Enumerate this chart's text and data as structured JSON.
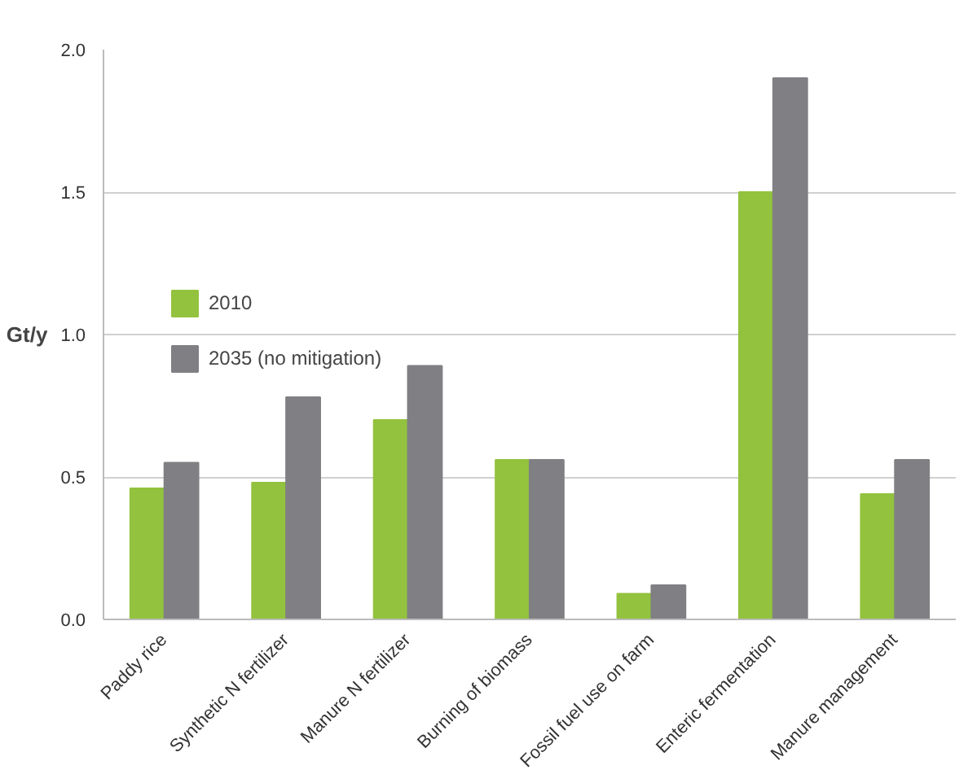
{
  "chart_data": {
    "type": "bar",
    "ylabel": "Gt/y",
    "categories": [
      "Paddy rice",
      "Synthetic N fertilizer",
      "Manure N fertilizer",
      "Burning of biomass",
      "Fossil fuel use on farm",
      "Enteric fermentation",
      "Manure management"
    ],
    "series": [
      {
        "name": "2010",
        "color": "#93c23e",
        "values": [
          0.46,
          0.48,
          0.7,
          0.56,
          0.09,
          1.5,
          0.44
        ]
      },
      {
        "name": "2035 (no mitigation)",
        "color": "#808084",
        "values": [
          0.55,
          0.78,
          0.89,
          0.56,
          0.12,
          1.9,
          0.56
        ]
      }
    ],
    "ylim": [
      0,
      2.0
    ],
    "yticks": [
      {
        "value": 0,
        "label": "0.0"
      },
      {
        "value": 0.5,
        "label": "0.5"
      },
      {
        "value": 1.0,
        "label": "1.0"
      },
      {
        "value": 1.5,
        "label": "1.5"
      },
      {
        "value": 2.0,
        "label": "2.0"
      }
    ],
    "grid": "y",
    "legend": "top left"
  }
}
